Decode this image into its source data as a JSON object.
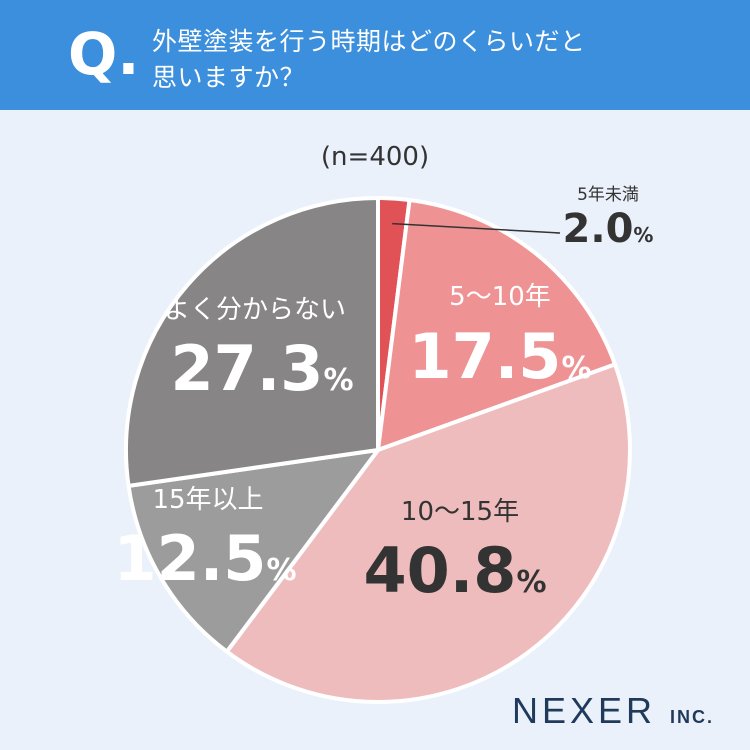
{
  "header": {
    "q_mark": "Q",
    "q_dot": ".",
    "question_line1": "外壁塗装を行う時期はどのくらいだと",
    "question_line2": "思いますか？"
  },
  "sample_note": "(n=400)",
  "logo": {
    "name": "NEXER",
    "suffix": "INC."
  },
  "colors": {
    "header_bg": "#3c8fdc",
    "page_bg": "#ebf1fa",
    "slice_5": "#e05256",
    "slice_5_10": "#ef9294",
    "slice_10_15": "#efbcbd",
    "slice_15_plus": "#9c9c9c",
    "slice_unknown": "#878585"
  },
  "chart_data": {
    "type": "pie",
    "unit": "%",
    "slices": [
      {
        "label": "5年未満",
        "value": 2.0,
        "value_text": "2.0",
        "color": "#e05256"
      },
      {
        "label": "5〜10年",
        "value": 17.5,
        "value_text": "17.5",
        "color": "#ef9294"
      },
      {
        "label": "10〜15年",
        "value": 40.8,
        "value_text": "40.8",
        "color": "#efbcbd"
      },
      {
        "label": "15年以上",
        "value": 12.5,
        "value_text": "12.5",
        "color": "#9c9c9c"
      },
      {
        "label": "よく分からない",
        "value": 27.3,
        "value_text": "27.3",
        "color": "#878585"
      }
    ]
  }
}
